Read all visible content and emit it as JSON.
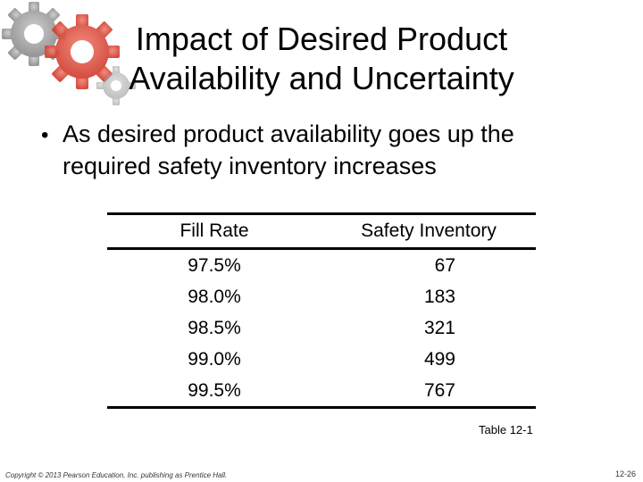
{
  "slide": {
    "title_lines": [
      "Impact of Desired Product",
      "Availability and Uncertainty"
    ],
    "bullet": {
      "icon": "bullet-dot-icon",
      "line1": "As desired product availability goes up the",
      "line2": "required safety inventory increases"
    },
    "decoration": {
      "icon": "gears-icon",
      "colors": {
        "gray_gear": "#9a9a9a",
        "red_gear": "#e0483a"
      }
    }
  },
  "table": {
    "headers": [
      "Fill Rate",
      "Safety Inventory"
    ],
    "rows": [
      [
        "97.5%",
        "67"
      ],
      [
        "98.0%",
        "183"
      ],
      [
        "98.5%",
        "321"
      ],
      [
        "99.0%",
        "499"
      ],
      [
        "99.5%",
        "767"
      ]
    ],
    "caption": "Table 12-1"
  },
  "footer": {
    "copyright": "Copyright © 2013 Pearson Education, Inc. publishing as Prentice Hall.",
    "page_number": "12-26"
  }
}
